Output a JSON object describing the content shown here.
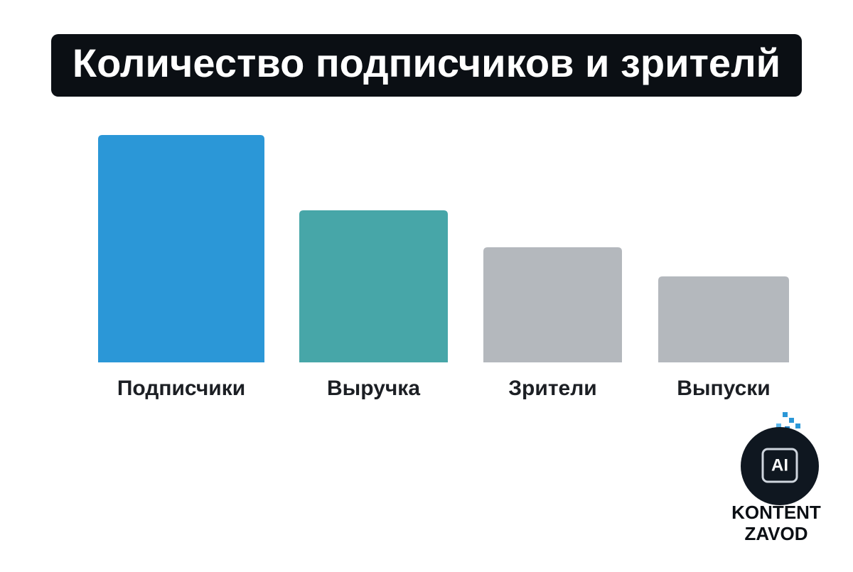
{
  "chart_data": {
    "type": "bar",
    "title": "Количество подписчиков и зрителй",
    "categories": [
      "Подписчики",
      "Выручка",
      "Зрители",
      "Выпуски"
    ],
    "values": [
      320,
      214,
      162,
      121
    ],
    "colors": [
      "#2b97d7",
      "#47a6a8",
      "#b4b8bd",
      "#b4b8bd"
    ],
    "ylim": [
      0,
      320
    ]
  },
  "logo": {
    "badge": "AI",
    "line1": "KONTENT",
    "line2": "ZAVOD"
  }
}
